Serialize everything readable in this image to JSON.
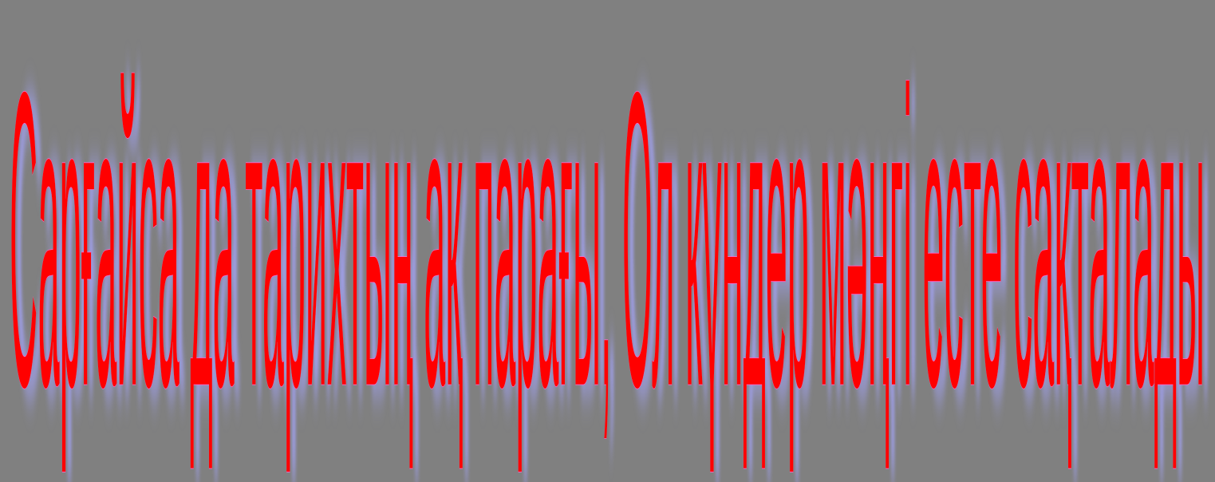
{
  "slide": {
    "text": "Сарғайса да тарихтың ақ парағы, Ол күндер мәңгі есте сақталады",
    "fill_color": "#ff0000",
    "outline_color": "#ff66cc",
    "shadow_color": "#9f9fe8",
    "background_color": "#808080"
  }
}
